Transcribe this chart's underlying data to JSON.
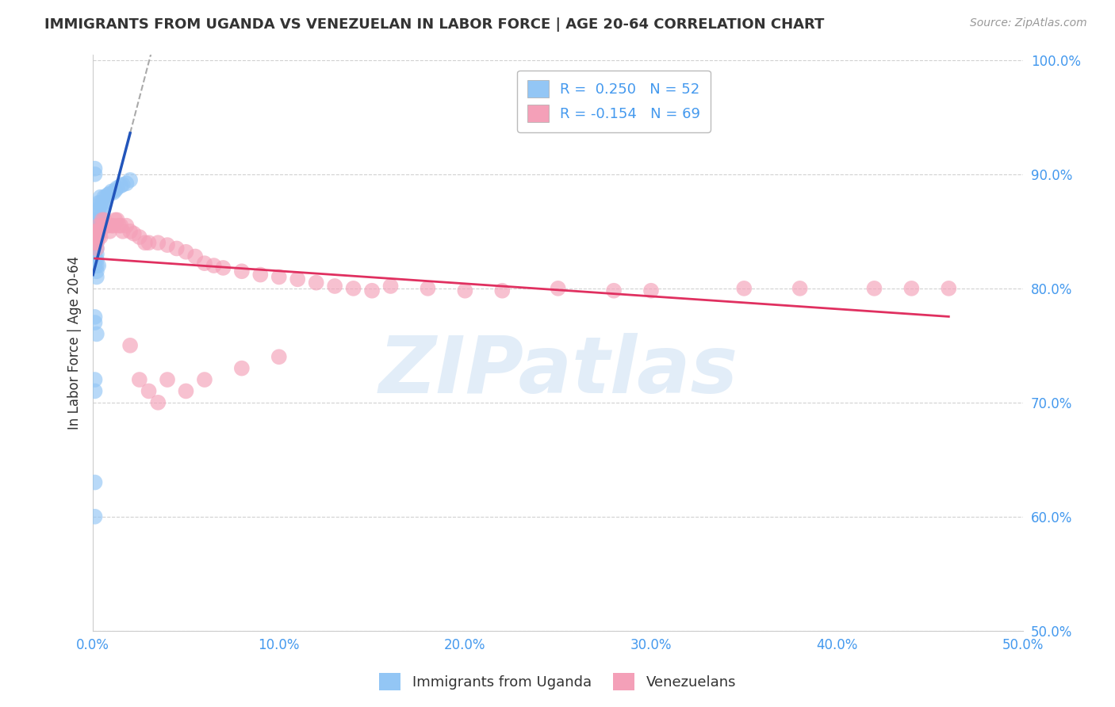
{
  "title": "IMMIGRANTS FROM UGANDA VS VENEZUELAN IN LABOR FORCE | AGE 20-64 CORRELATION CHART",
  "source": "Source: ZipAtlas.com",
  "ylabel": "In Labor Force | Age 20-64",
  "xlim": [
    0.0,
    0.5
  ],
  "ylim": [
    0.5,
    1.005
  ],
  "xticks": [
    0.0,
    0.1,
    0.2,
    0.3,
    0.4,
    0.5
  ],
  "xticklabels": [
    "0.0%",
    "10.0%",
    "20.0%",
    "30.0%",
    "40.0%",
    "50.0%"
  ],
  "ytick_vals": [
    0.5,
    0.6,
    0.7,
    0.8,
    0.9,
    1.0
  ],
  "yticklabels_right": [
    "50.0%",
    "60.0%",
    "70.0%",
    "80.0%",
    "90.0%",
    "100.0%"
  ],
  "uganda_R": 0.25,
  "uganda_N": 52,
  "venezuelan_R": -0.154,
  "venezuelan_N": 69,
  "uganda_color": "#93C6F5",
  "venezuela_color": "#F4A0B8",
  "trend_uganda_color": "#2255BB",
  "trend_venezuela_color": "#E03060",
  "dashed_color": "#AAAAAA",
  "watermark": "ZIPatlas",
  "watermark_color": "#C0D8F0",
  "background_color": "#FFFFFF",
  "grid_color": "#CCCCCC",
  "axis_tick_color": "#4499EE",
  "title_color": "#333333",
  "uganda_x": [
    0.001,
    0.001,
    0.001,
    0.001,
    0.001,
    0.001,
    0.002,
    0.002,
    0.002,
    0.002,
    0.002,
    0.002,
    0.002,
    0.002,
    0.002,
    0.003,
    0.003,
    0.003,
    0.003,
    0.003,
    0.003,
    0.004,
    0.004,
    0.004,
    0.004,
    0.005,
    0.005,
    0.006,
    0.006,
    0.007,
    0.008,
    0.009,
    0.01,
    0.011,
    0.012,
    0.013,
    0.015,
    0.016,
    0.018,
    0.02,
    0.001,
    0.001,
    0.002,
    0.002,
    0.003,
    0.001,
    0.001,
    0.002,
    0.001,
    0.001,
    0.001,
    0.001
  ],
  "uganda_y": [
    0.84,
    0.845,
    0.83,
    0.825,
    0.82,
    0.835,
    0.84,
    0.845,
    0.85,
    0.855,
    0.835,
    0.86,
    0.83,
    0.825,
    0.82,
    0.855,
    0.86,
    0.865,
    0.87,
    0.875,
    0.85,
    0.86,
    0.87,
    0.875,
    0.88,
    0.87,
    0.875,
    0.875,
    0.88,
    0.88,
    0.882,
    0.883,
    0.885,
    0.884,
    0.886,
    0.888,
    0.89,
    0.891,
    0.892,
    0.895,
    0.9,
    0.905,
    0.81,
    0.815,
    0.82,
    0.775,
    0.77,
    0.76,
    0.72,
    0.71,
    0.63,
    0.6
  ],
  "venezuela_x": [
    0.001,
    0.001,
    0.001,
    0.002,
    0.002,
    0.002,
    0.002,
    0.003,
    0.003,
    0.003,
    0.004,
    0.004,
    0.005,
    0.005,
    0.006,
    0.006,
    0.007,
    0.008,
    0.009,
    0.01,
    0.011,
    0.012,
    0.013,
    0.014,
    0.015,
    0.016,
    0.018,
    0.02,
    0.022,
    0.025,
    0.028,
    0.03,
    0.035,
    0.04,
    0.045,
    0.05,
    0.055,
    0.06,
    0.065,
    0.07,
    0.08,
    0.09,
    0.1,
    0.11,
    0.12,
    0.13,
    0.14,
    0.15,
    0.16,
    0.18,
    0.2,
    0.22,
    0.25,
    0.28,
    0.3,
    0.35,
    0.38,
    0.42,
    0.44,
    0.46,
    0.02,
    0.025,
    0.03,
    0.035,
    0.04,
    0.05,
    0.06,
    0.08,
    0.1
  ],
  "venezuela_y": [
    0.84,
    0.845,
    0.85,
    0.835,
    0.84,
    0.845,
    0.85,
    0.845,
    0.85,
    0.855,
    0.845,
    0.85,
    0.855,
    0.86,
    0.855,
    0.86,
    0.855,
    0.855,
    0.85,
    0.855,
    0.855,
    0.86,
    0.86,
    0.855,
    0.855,
    0.85,
    0.855,
    0.85,
    0.848,
    0.845,
    0.84,
    0.84,
    0.84,
    0.838,
    0.835,
    0.832,
    0.828,
    0.822,
    0.82,
    0.818,
    0.815,
    0.812,
    0.81,
    0.808,
    0.805,
    0.802,
    0.8,
    0.798,
    0.802,
    0.8,
    0.798,
    0.798,
    0.8,
    0.798,
    0.798,
    0.8,
    0.8,
    0.8,
    0.8,
    0.8,
    0.75,
    0.72,
    0.71,
    0.7,
    0.72,
    0.71,
    0.72,
    0.73,
    0.74
  ],
  "legend_box_color": "#FFFFFF",
  "legend_border_color": "#BBBBBB"
}
